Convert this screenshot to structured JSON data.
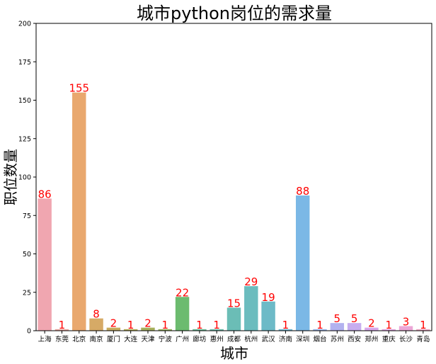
{
  "chart_data": {
    "type": "bar",
    "title": "城市python岗位的需求量",
    "xlabel": "城市",
    "ylabel": "职位数量",
    "ylim": [
      0,
      200
    ],
    "yticks": [
      0,
      25,
      50,
      75,
      100,
      125,
      150,
      175,
      200
    ],
    "grid": false,
    "categories": [
      "上海",
      "东莞",
      "北京",
      "南京",
      "厦门",
      "大连",
      "天津",
      "宁波",
      "广州",
      "廊坊",
      "惠州",
      "成都",
      "杭州",
      "武汉",
      "济南",
      "深圳",
      "烟台",
      "苏州",
      "西安",
      "郑州",
      "重庆",
      "长沙",
      "青岛"
    ],
    "values": [
      86,
      1,
      155,
      8,
      2,
      1,
      2,
      1,
      22,
      1,
      1,
      15,
      29,
      19,
      1,
      88,
      1,
      5,
      5,
      2,
      1,
      3,
      1
    ],
    "colors": [
      "#f0a6b0",
      "#eca7a0",
      "#e9a86e",
      "#d6aa66",
      "#c6ac5e",
      "#b7ae58",
      "#a7b05c",
      "#98b25e",
      "#6cbb6f",
      "#6ebc98",
      "#6dbdab",
      "#6bbdb6",
      "#6bbcbe",
      "#6dbac7",
      "#72b9d2",
      "#7bb8e6",
      "#9cb6ec",
      "#b3b2ef",
      "#c7adef",
      "#d8a8ec",
      "#e5a6e3",
      "#eca7d6",
      "#efa8c5"
    ],
    "label_color": "#ff0000"
  }
}
